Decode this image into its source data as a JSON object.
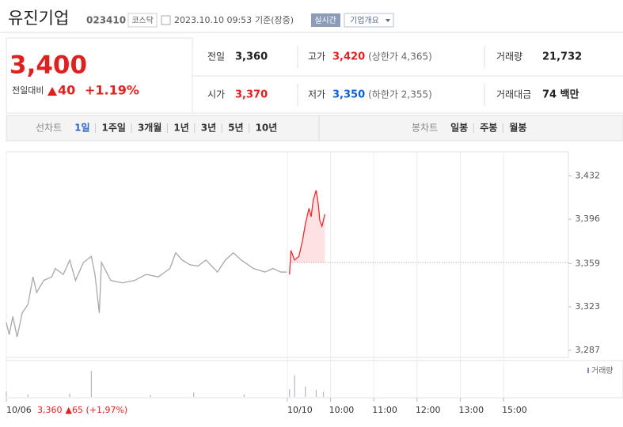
{
  "header": {
    "name": "유진기업",
    "code": "023410",
    "market": "코스닥",
    "datetime": "2023.10.10 09:53",
    "basis": "기준(장중)",
    "buttons": [
      "실시간",
      "기업개요"
    ]
  },
  "price": {
    "current": "3,400",
    "change_label": "전일대비",
    "change": "40",
    "rate": "+1.19%"
  },
  "info": [
    [
      {
        "label": "전일",
        "value": "3,360"
      },
      {
        "label": "고가",
        "value": "3,420",
        "color": "#e0201f",
        "sub": "(상한가 4,365)"
      },
      {
        "label": "거래량",
        "value": "21,732"
      }
    ],
    [
      {
        "label": "시가",
        "value": "3,370",
        "color": "#e0201f"
      },
      {
        "label": "저가",
        "value": "3,350",
        "color": "#0a5fd6",
        "sub": "(하한가 2,355)"
      },
      {
        "label": "거래대금",
        "value": "74 백만"
      }
    ]
  ],
  "tabs": {
    "line_label": "선차트",
    "line": [
      "1일",
      "1주일",
      "3개월",
      "1년",
      "3년",
      "5년",
      "10년"
    ],
    "selected": 0,
    "candle_label": "봉차트",
    "candle": [
      "일봉",
      "주봉",
      "월봉"
    ]
  },
  "chart_data": {
    "type": "line",
    "xlim": [
      0,
      780
    ],
    "xticks": [
      {
        "value": 0,
        "label": "10/06"
      },
      {
        "value": 390,
        "label": "10/10"
      },
      {
        "value": 450,
        "label": "10:00"
      },
      {
        "value": 510,
        "label": "11:00"
      },
      {
        "value": 570,
        "label": "12:00"
      },
      {
        "value": 630,
        "label": "13:00"
      },
      {
        "value": 690,
        "label": "15:00"
      }
    ],
    "ylim": [
      3281,
      3452
    ],
    "yticks": [
      {
        "value": 3287,
        "label": "3,287"
      },
      {
        "value": 3323,
        "label": "3,323"
      },
      {
        "value": 3359,
        "label": "3,359"
      },
      {
        "value": 3396,
        "label": "3,396"
      },
      {
        "value": 3432,
        "label": "3,432"
      }
    ],
    "reference": 3360,
    "series": [
      {
        "color": "#a8a8a8",
        "x": [
          0,
          4,
          9,
          15,
          22,
          30,
          37,
          42,
          52,
          63,
          68,
          79,
          88,
          96,
          107,
          118,
          123,
          129,
          132,
          145,
          161,
          178,
          194,
          211,
          227,
          235,
          244,
          255,
          266,
          277,
          293,
          304,
          315,
          326,
          343,
          359,
          370,
          381,
          389
        ],
        "values": [
          3310,
          3300,
          3315,
          3298,
          3318,
          3325,
          3348,
          3335,
          3345,
          3348,
          3355,
          3350,
          3362,
          3345,
          3360,
          3365,
          3350,
          3318,
          3360,
          3345,
          3343,
          3345,
          3350,
          3348,
          3355,
          3368,
          3362,
          3358,
          3357,
          3362,
          3352,
          3362,
          3368,
          3362,
          3355,
          3352,
          3355,
          3352,
          3352
        ]
      },
      {
        "color": "#e8292e",
        "fill": "#fde1e3",
        "x": [
          393,
          395,
          400,
          406,
          411,
          415,
          420,
          423,
          426,
          430,
          433,
          435,
          438,
          442
        ],
        "values": [
          3350,
          3370,
          3362,
          3365,
          3378,
          3392,
          3405,
          3398,
          3412,
          3420,
          3408,
          3395,
          3390,
          3400
        ]
      }
    ],
    "volume": {
      "label": "거래량",
      "color": "#b5b5c8",
      "ylim": [
        0,
        4000
      ],
      "x": [
        0,
        30,
        88,
        118,
        200,
        260,
        330,
        393,
        400,
        415,
        430,
        440
      ],
      "values": [
        600,
        300,
        400,
        3000,
        250,
        500,
        300,
        900,
        2500,
        1200,
        800,
        600
      ]
    },
    "note": {
      "price": "3,360",
      "change": "▲65 (+1,97%)"
    }
  }
}
